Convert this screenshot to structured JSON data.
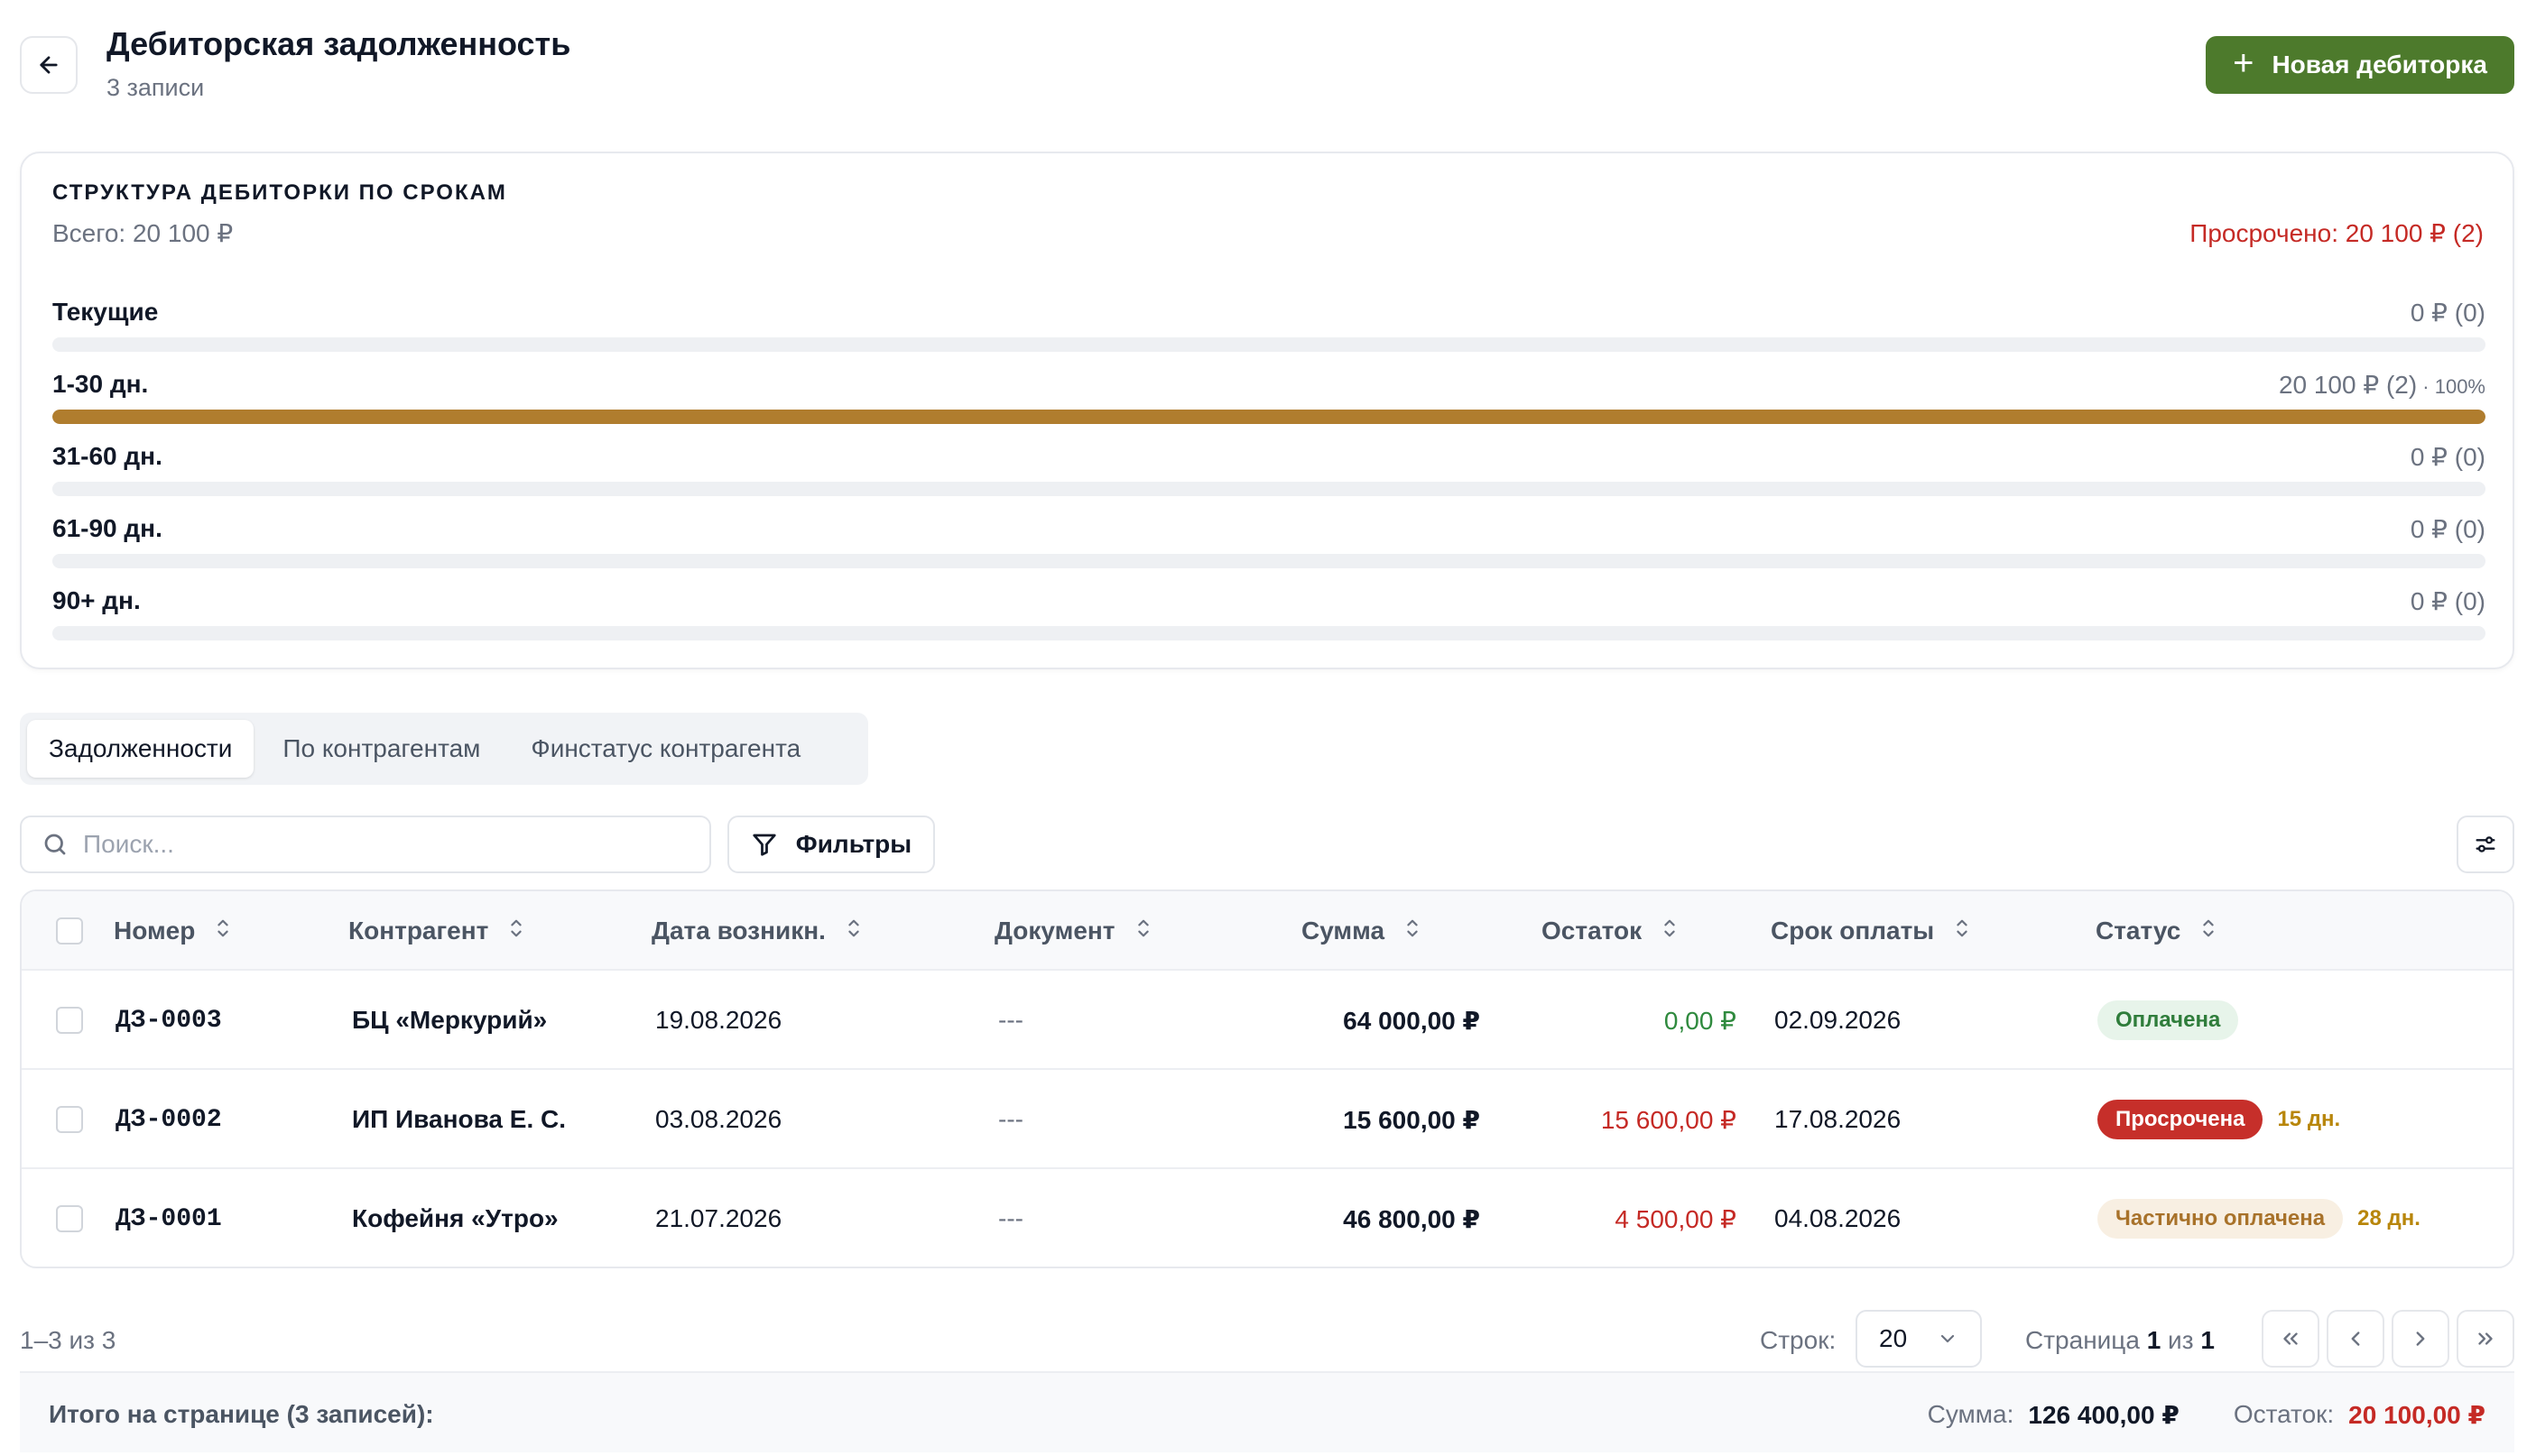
{
  "header": {
    "title": "Дебиторская задолженность",
    "subtitle": "3 записи",
    "new_button_label": "Новая дебиторка"
  },
  "aging": {
    "title": "СТРУКТУРА ДЕБИТОРКИ ПО СРОКАМ",
    "total": "Всего: 20 100 ₽",
    "overdue": "Просрочено: 20 100 ₽ (2)",
    "buckets": [
      {
        "label": "Текущие",
        "value": "0 ₽ (0)",
        "pct_label": "",
        "fill": 0
      },
      {
        "label": "1-30 дн.",
        "value": "20 100 ₽ (2)",
        "pct_label": " · 100%",
        "fill": 1.0
      },
      {
        "label": "31-60 дн.",
        "value": "0 ₽ (0)",
        "pct_label": "",
        "fill": 0
      },
      {
        "label": "61-90 дн.",
        "value": "0 ₽ (0)",
        "pct_label": "",
        "fill": 0
      },
      {
        "label": "90+ дн.",
        "value": "0 ₽ (0)",
        "pct_label": "",
        "fill": 0
      }
    ],
    "fill_color": "#b07d2e"
  },
  "tabs": [
    {
      "label": "Задолженности",
      "active": true
    },
    {
      "label": "По контрагентам",
      "active": false
    },
    {
      "label": "Финстатус контрагента",
      "active": false
    }
  ],
  "toolbar": {
    "search_placeholder": "Поиск...",
    "filters_label": "Фильтры"
  },
  "table": {
    "columns": [
      "Номер",
      "Контрагент",
      "Дата возникн.",
      "Документ",
      "Сумма",
      "Остаток",
      "Срок оплаты",
      "Статус"
    ],
    "rows": [
      {
        "number": "ДЗ-0003",
        "counterparty": "БЦ «Меркурий»",
        "date": "19.08.2026",
        "document": "---",
        "amount": "64 000,00 ₽",
        "remaining": "0,00 ₽",
        "remaining_color": "#2f8a3e",
        "due": "02.09.2026",
        "status": "Оплачена",
        "status_bg": "#e7f4ea",
        "status_color": "#2f7d3b",
        "days": ""
      },
      {
        "number": "ДЗ-0002",
        "counterparty": "ИП Иванова Е. С.",
        "date": "03.08.2026",
        "document": "---",
        "amount": "15 600,00 ₽",
        "remaining": "15 600,00 ₽",
        "remaining_color": "#c52a25",
        "due": "17.08.2026",
        "status": "Просрочена",
        "status_bg": "#c62f2a",
        "status_color": "#ffffff",
        "days": "15 дн."
      },
      {
        "number": "ДЗ-0001",
        "counterparty": "Кофейня «Утро»",
        "date": "21.07.2026",
        "document": "---",
        "amount": "46 800,00 ₽",
        "remaining": "4 500,00 ₽",
        "remaining_color": "#c52a25",
        "due": "04.08.2026",
        "status": "Частично оплачена",
        "status_bg": "#f8efe2",
        "status_color": "#a8722a",
        "days": "28 дн."
      }
    ]
  },
  "pagination": {
    "range": "1–3 из 3",
    "rows_label": "Строк:",
    "rows_value": "20",
    "page_prefix": "Страница",
    "page_current": "1",
    "page_of": "из",
    "page_total": "1"
  },
  "footer": {
    "label": "Итого на странице (3 записей):",
    "sum_label": "Сумма:",
    "sum_value": "126 400,00 ₽",
    "remaining_label": "Остаток:",
    "remaining_value": "20 100,00 ₽"
  }
}
